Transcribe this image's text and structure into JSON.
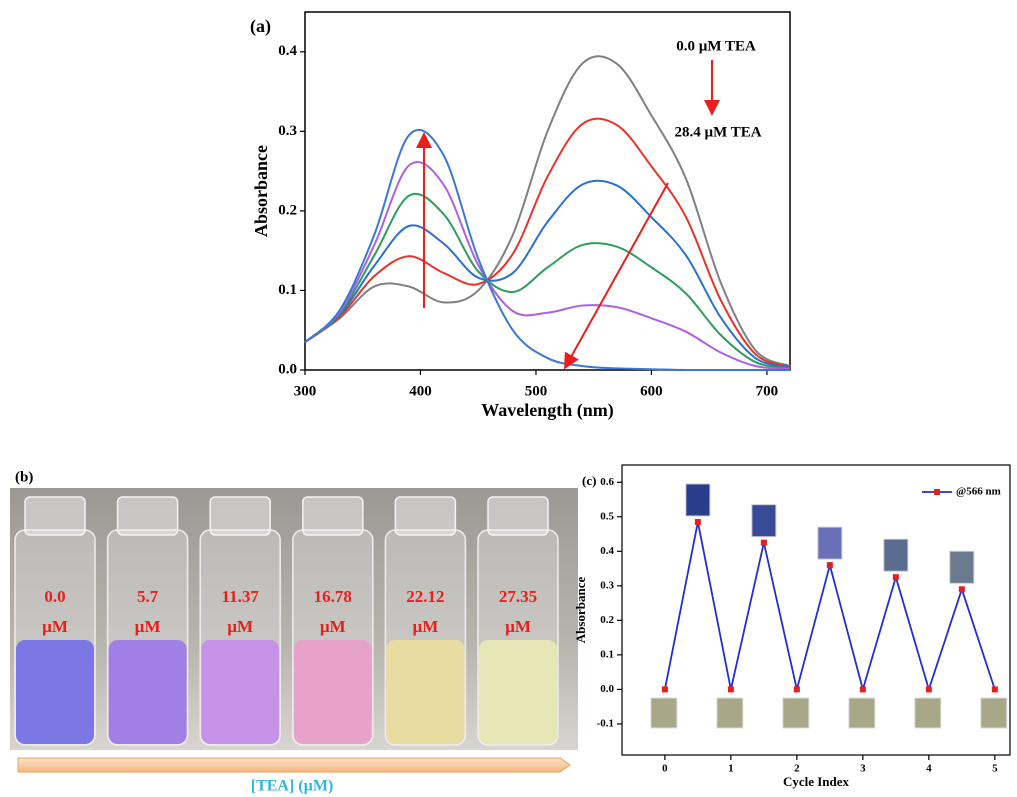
{
  "chart_data": [
    {
      "type": "line",
      "panel_label": "(a)",
      "xlabel": "Wavelength (nm)",
      "ylabel": "Absorbance",
      "annotations": [
        "0.0 µM TEA",
        "28.4 µM  TEA"
      ],
      "x": [
        300,
        330,
        360,
        390,
        420,
        450,
        480,
        510,
        540,
        570,
        600,
        630,
        660,
        690,
        720
      ],
      "series": [
        {
          "color": "#808080",
          "values": [
            0.035,
            0.065,
            0.105,
            0.105,
            0.085,
            0.1,
            0.17,
            0.3,
            0.385,
            0.385,
            0.32,
            0.24,
            0.11,
            0.025,
            0.005
          ]
        },
        {
          "color": "#e8332a",
          "values": [
            0.035,
            0.067,
            0.118,
            0.143,
            0.122,
            0.108,
            0.146,
            0.243,
            0.309,
            0.308,
            0.256,
            0.192,
            0.088,
            0.02,
            0.004
          ]
        },
        {
          "color": "#2a6fd6",
          "values": [
            0.035,
            0.069,
            0.131,
            0.181,
            0.159,
            0.116,
            0.122,
            0.186,
            0.233,
            0.232,
            0.192,
            0.144,
            0.066,
            0.015,
            0.003
          ]
        },
        {
          "color": "#2e9e5a",
          "values": [
            0.035,
            0.071,
            0.144,
            0.219,
            0.196,
            0.124,
            0.098,
            0.129,
            0.157,
            0.155,
            0.129,
            0.096,
            0.044,
            0.01,
            0.002
          ]
        },
        {
          "color": "#b05fe0",
          "values": [
            0.035,
            0.073,
            0.157,
            0.257,
            0.233,
            0.132,
            0.074,
            0.072,
            0.081,
            0.079,
            0.065,
            0.048,
            0.022,
            0.005,
            0.001
          ]
        },
        {
          "color": "#3a78d8",
          "values": [
            0.035,
            0.075,
            0.17,
            0.295,
            0.27,
            0.14,
            0.05,
            0.015,
            0.005,
            0.002,
            0.001,
            0,
            0,
            0,
            0
          ]
        }
      ],
      "xlim": [
        300,
        720
      ],
      "xticks": [
        300,
        400,
        500,
        600,
        700
      ],
      "ylim": [
        0,
        0.45
      ],
      "yticks": [
        {
          "value": 0,
          "label": "0.0"
        },
        0.1,
        0.2,
        0.3,
        0.4
      ]
    },
    {
      "type": "line",
      "panel_label": "(c)",
      "xlabel": "Cycle Index",
      "ylabel": "Absorbance",
      "legend": "upper right",
      "x": [
        0,
        0.5,
        1,
        1.5,
        2,
        2.5,
        3,
        3.5,
        4,
        4.5,
        5
      ],
      "series": [
        {
          "name": "@566 nm",
          "color": "#1f2fd6",
          "marker_color": "#e8201c",
          "values": [
            0,
            0.485,
            0,
            0.425,
            0,
            0.36,
            0,
            0.325,
            0,
            0.29,
            0
          ]
        }
      ],
      "xlim": [
        -0.65,
        5.23
      ],
      "xticks": [
        0,
        1,
        2,
        3,
        4,
        5
      ],
      "ylim": [
        -0.19,
        0.65
      ],
      "yticks": [
        0.6,
        0.5,
        0.4,
        0.3,
        0.2,
        0.1,
        {
          "value": 0,
          "label": "0.0"
        },
        -0.1
      ]
    }
  ],
  "photo": {
    "panel_label": "(b)",
    "axis_label": "[TEA] (µM)",
    "vials": [
      {
        "value": "0.0",
        "unit": "µM"
      },
      {
        "value": "5.7",
        "unit": "µM"
      },
      {
        "value": "11.37",
        "unit": "µM"
      },
      {
        "value": "16.78",
        "unit": "µM"
      },
      {
        "value": "22.12",
        "unit": "µM"
      },
      {
        "value": "27.35",
        "unit": "µM"
      }
    ]
  }
}
